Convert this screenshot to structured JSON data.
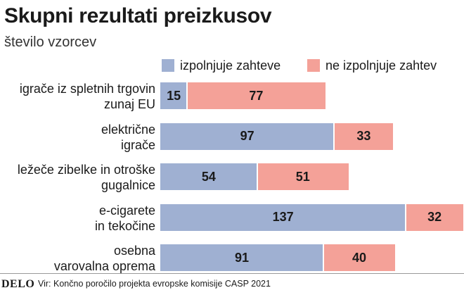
{
  "colors": {
    "pass": "#9fb0d2",
    "fail": "#f4a198"
  },
  "chart_data": {
    "type": "bar",
    "orientation": "horizontal",
    "stacked": true,
    "title": "Skupni rezultati preizkusov",
    "subtitle": "število vzorcev",
    "legend": [
      "izpolnjuje zahteve",
      "ne izpolnjuje zahtev"
    ],
    "legend_position": "top-right",
    "categories": [
      [
        "igrače iz spletnih trgovin",
        "zunaj EU"
      ],
      [
        "električne",
        "igrače"
      ],
      [
        "ležeče zibelke in otroške",
        "gugalnice"
      ],
      [
        "e-cigarete",
        "in tekočine"
      ],
      [
        "osebna",
        "varovalna oprema"
      ]
    ],
    "series": [
      {
        "name": "izpolnjuje zahteve",
        "values": [
          15,
          97,
          54,
          137,
          91
        ]
      },
      {
        "name": "ne izpolnjuje zahtev",
        "values": [
          77,
          33,
          51,
          32,
          40
        ]
      }
    ]
  },
  "footer": {
    "logo": "DELO",
    "source": "Vir: Končno poročilo projekta evropske komisije CASP 2021"
  }
}
